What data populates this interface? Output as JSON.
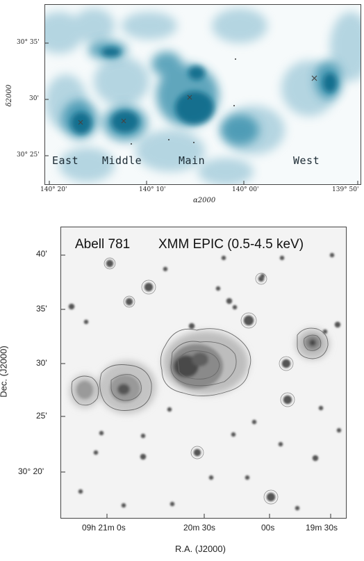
{
  "top_panel": {
    "region_labels": [
      "East",
      "Middle",
      "Main",
      "West"
    ],
    "dec_ticks": [
      "30° 35'",
      "30'",
      "30° 25'"
    ],
    "dec_label": "δ2000",
    "ra_ticks": [
      "140° 20'",
      "140° 10'",
      "140° 00'",
      "139° 50'"
    ],
    "ra_label": "α2000",
    "colormap_color": "#0b6b8a"
  },
  "bottom_panel": {
    "title": "Abell 781",
    "subtitle": "XMM EPIC (0.5-4.5 keV)",
    "dec_ticks": [
      "40'",
      "35'",
      "30'",
      "25'",
      "30° 20'"
    ],
    "dec_label": "Dec. (J2000)",
    "ra_ticks": [
      "09h 21m 0s",
      "20m 30s",
      "00s",
      "19m 30s"
    ],
    "ra_label": "R.A. (J2000)"
  }
}
